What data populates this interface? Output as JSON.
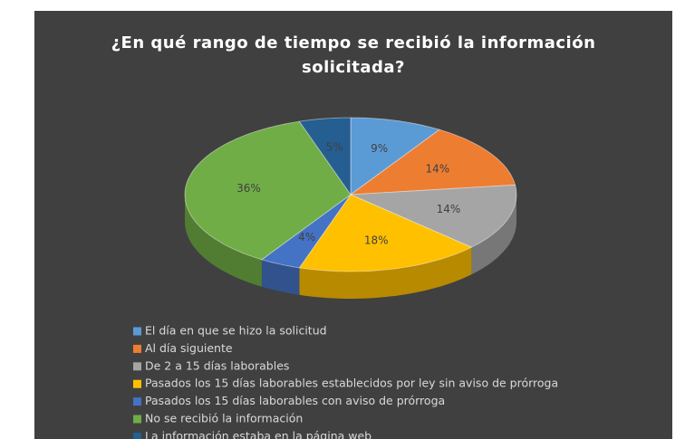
{
  "chart_data": {
    "type": "pie",
    "title": "¿En qué rango de tiempo se recibió la información solicitada?",
    "categories": [
      "El día en que se hizo la solicitud",
      "Al día siguiente",
      "De 2 a 15 días laborables",
      "Pasados los 15 días laborables establecidos por ley sin aviso de prórroga",
      "Pasados los 15 días laborables con aviso de prórroga",
      "No se recibió la información",
      "La información estaba en la página web"
    ],
    "values": [
      9,
      14,
      14,
      18,
      4,
      36,
      5
    ],
    "value_labels": [
      "9%",
      "14%",
      "14%",
      "18%",
      "4%",
      "36%",
      "5%"
    ],
    "colors": [
      "#5b9bd5",
      "#ed7d31",
      "#a5a5a5",
      "#ffc000",
      "#4472c4",
      "#70ad47",
      "#255e91"
    ],
    "legend": "bottom"
  }
}
